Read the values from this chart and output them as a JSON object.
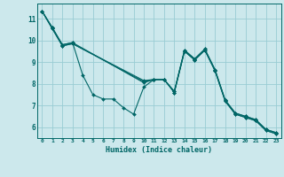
{
  "xlabel": "Humidex (Indice chaleur)",
  "background_color": "#cce8ec",
  "grid_color": "#99ccd4",
  "line_color": "#006666",
  "xlim": [
    -0.5,
    23.5
  ],
  "ylim": [
    5.5,
    11.7
  ],
  "xticks": [
    0,
    1,
    2,
    3,
    4,
    5,
    6,
    7,
    8,
    9,
    10,
    11,
    12,
    13,
    14,
    15,
    16,
    17,
    18,
    19,
    20,
    21,
    22,
    23
  ],
  "yticks": [
    6,
    7,
    8,
    9,
    10,
    11
  ],
  "lines": [
    {
      "x": [
        0,
        1,
        2,
        3,
        4,
        5,
        6,
        7,
        8,
        9,
        10,
        11,
        12,
        13,
        14,
        15,
        16,
        17,
        18,
        19,
        20,
        21,
        22,
        23
      ],
      "y": [
        11.35,
        10.6,
        9.8,
        9.9,
        8.4,
        7.5,
        7.3,
        7.3,
        6.9,
        6.6,
        7.85,
        8.2,
        8.2,
        7.65,
        9.55,
        9.15,
        9.6,
        8.65,
        7.25,
        6.65,
        6.5,
        6.35,
        5.9,
        5.75
      ]
    },
    {
      "x": [
        0,
        1,
        2,
        3,
        10,
        11,
        12,
        13,
        14,
        15,
        16,
        17,
        18,
        19,
        20,
        21,
        22,
        23
      ],
      "y": [
        11.35,
        10.6,
        9.8,
        9.9,
        8.05,
        8.2,
        8.2,
        7.65,
        9.55,
        9.15,
        9.6,
        8.65,
        7.25,
        6.65,
        6.5,
        6.35,
        5.9,
        5.75
      ]
    },
    {
      "x": [
        0,
        1,
        2,
        3,
        10,
        11,
        12,
        13,
        14,
        15,
        16,
        17,
        18,
        19,
        20,
        21,
        22,
        23
      ],
      "y": [
        11.35,
        10.55,
        9.75,
        9.85,
        8.1,
        8.2,
        8.2,
        7.6,
        9.5,
        9.1,
        9.55,
        8.6,
        7.2,
        6.6,
        6.45,
        6.3,
        5.85,
        5.7
      ]
    },
    {
      "x": [
        0,
        1,
        2,
        3,
        10,
        11,
        12,
        13,
        14,
        15,
        16,
        17,
        18,
        19,
        20,
        21,
        22,
        23
      ],
      "y": [
        11.35,
        10.55,
        9.75,
        9.85,
        8.15,
        8.2,
        8.2,
        7.6,
        9.5,
        9.1,
        9.55,
        8.6,
        7.2,
        6.6,
        6.45,
        6.3,
        5.85,
        5.7
      ]
    }
  ]
}
